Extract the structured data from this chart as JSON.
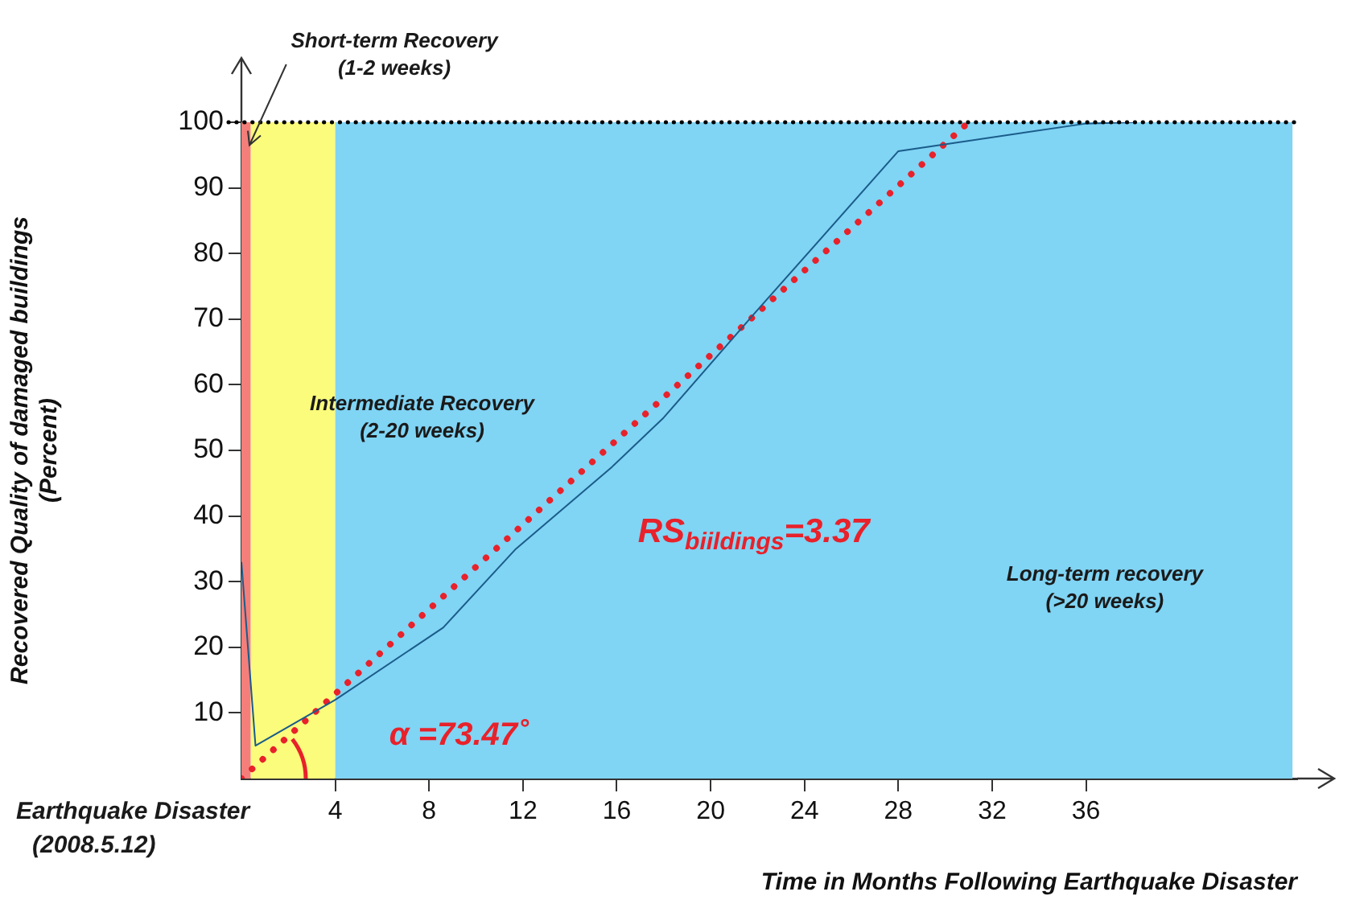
{
  "chart_data": {
    "type": "line",
    "xlabel": "Time in Months Following Earthquake Disaster",
    "ylabel": "Recovered Quality of damaged buildings\n(Percent)",
    "xlim": [
      0,
      45
    ],
    "xticks": [
      4,
      8,
      12,
      16,
      20,
      24,
      28,
      32,
      36
    ],
    "ylim": [
      0,
      100
    ],
    "yticks": [
      10,
      20,
      30,
      40,
      50,
      60,
      70,
      80,
      90,
      100
    ],
    "grid": false,
    "legend": false,
    "marker": "none",
    "series": [
      {
        "color": "#1a5c8a",
        "line_style": "solid",
        "x": [
          0,
          0.6,
          4,
          8.6,
          11.7,
          15.8,
          18,
          21.9,
          28,
          36,
          38
        ],
        "values": [
          33,
          5,
          12,
          23,
          35,
          47.5,
          55,
          71,
          95.6,
          99.8,
          100
        ]
      },
      {
        "color": "#e8212a",
        "line_style": "dotted",
        "x": [
          0,
          31
        ],
        "values": [
          0,
          100
        ]
      }
    ],
    "ref_lines": [
      {
        "axis": "y",
        "value": 100,
        "color": "#000000",
        "line_style": "dotted"
      }
    ],
    "bands": [
      {
        "axis": "x",
        "from": 0,
        "to": 0.4,
        "color": "#f47f7a",
        "label": "Short-term Recovery\n(1-2 weeks)"
      },
      {
        "axis": "x",
        "from": 0.4,
        "to": 4,
        "color": "#fbfb7c",
        "label": "Intermediate Recovery\n(2-20 weeks)"
      },
      {
        "axis": "x",
        "from": 4,
        "to": 44.8,
        "color": "#80d4f4",
        "label": "Long-term recovery\n(>20 weeks)"
      }
    ],
    "annotations": [
      "Earthquake Disaster\n(2008.5.12)",
      "α =73.47˚",
      "RS$_{biildings}$=3.37"
    ]
  }
}
